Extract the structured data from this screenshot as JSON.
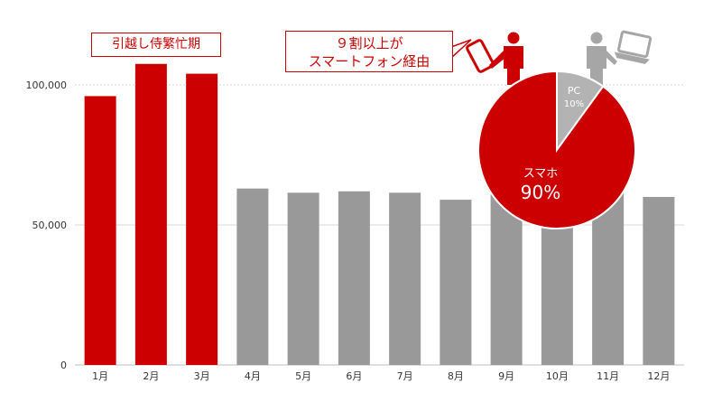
{
  "chart_data": [
    {
      "type": "bar",
      "categories": [
        "1月",
        "2月",
        "3月",
        "4月",
        "5月",
        "6月",
        "7月",
        "8月",
        "9月",
        "10月",
        "11月",
        "12月"
      ],
      "values": [
        96000,
        107500,
        104000,
        63000,
        61500,
        62000,
        61500,
        59000,
        65000,
        60000,
        62000,
        60000
      ],
      "ylim": [
        0,
        120000
      ],
      "yticks": [
        0,
        50000,
        100000
      ],
      "ytick_labels": [
        "0",
        "50,000",
        "100,000"
      ],
      "highlight_color": "#cc0000",
      "base_color": "#999999",
      "highlight_categories": [
        "1月",
        "2月",
        "3月"
      ],
      "grid": true
    },
    {
      "type": "pie",
      "labels": [
        "スマホ",
        "PC"
      ],
      "values": [
        90,
        10
      ],
      "value_labels": [
        "90%",
        "10%"
      ],
      "colors": [
        "#cc0000",
        "#b3b3b3"
      ]
    }
  ],
  "annotations": {
    "busy_season": "引越し侍繁忙期",
    "mobile_line1": "９割以上が",
    "mobile_line2": "スマートフォン経由"
  },
  "icons": [
    "smartphone-user-icon",
    "pc-user-icon"
  ]
}
